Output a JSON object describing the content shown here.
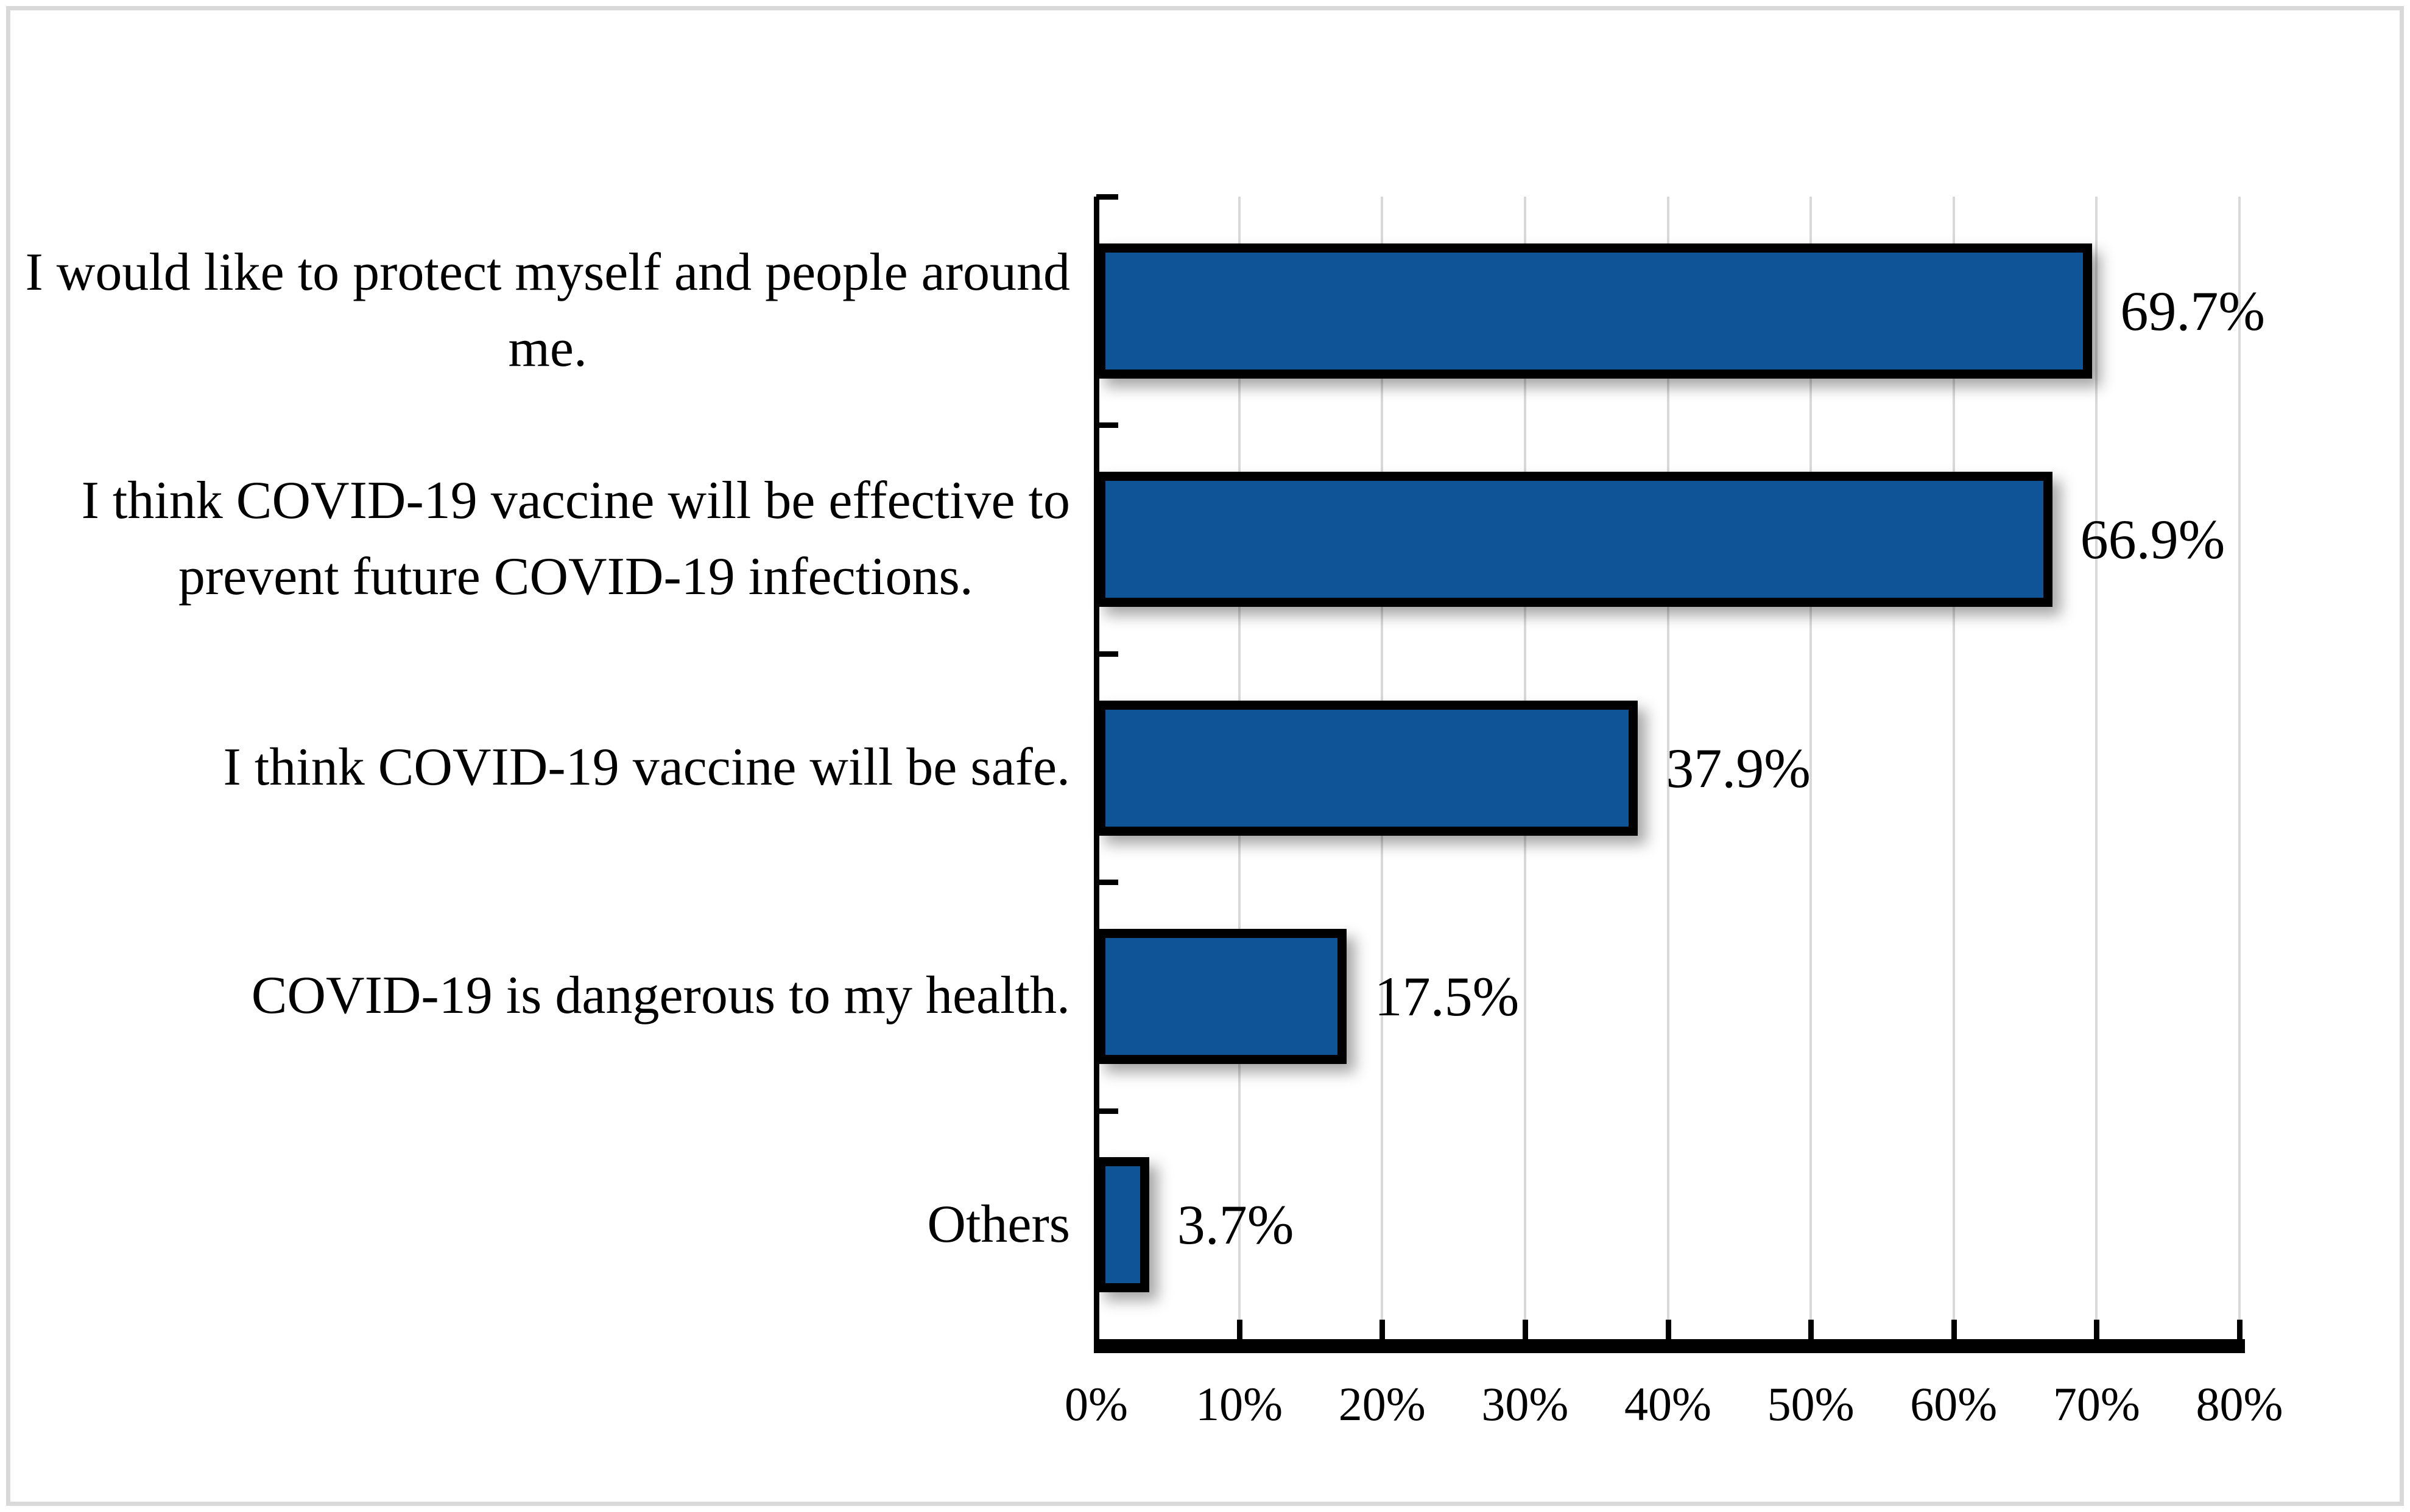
{
  "figure": {
    "background_color": "#FFFFFF",
    "frame_color": "#D9D9D9"
  },
  "chart_data": {
    "type": "bar",
    "orientation": "horizontal",
    "title": "",
    "xlabel": "",
    "ylabel": "",
    "xlim": [
      0,
      80
    ],
    "grid": "vertical-light-gray",
    "legend": "none",
    "bar_color": "#0E5496",
    "bar_border_color": "#000000",
    "gridline_color": "#D9D9D9",
    "categories": [
      "I would like to protect myself and people around\nme.",
      "I think COVID-19 vaccine will be effective to\nprevent future COVID-19 infections.",
      "I think COVID-19 vaccine will be safe.",
      "COVID-19 is dangerous to my health.",
      "Others"
    ],
    "values": [
      69.7,
      66.9,
      37.9,
      17.5,
      3.7
    ],
    "value_labels": [
      "69.7%",
      "66.9%",
      "37.9%",
      "17.5%",
      "3.7%"
    ],
    "x_ticks": [
      "0%",
      "10%",
      "20%",
      "30%",
      "40%",
      "50%",
      "60%",
      "70%",
      "80%"
    ]
  }
}
